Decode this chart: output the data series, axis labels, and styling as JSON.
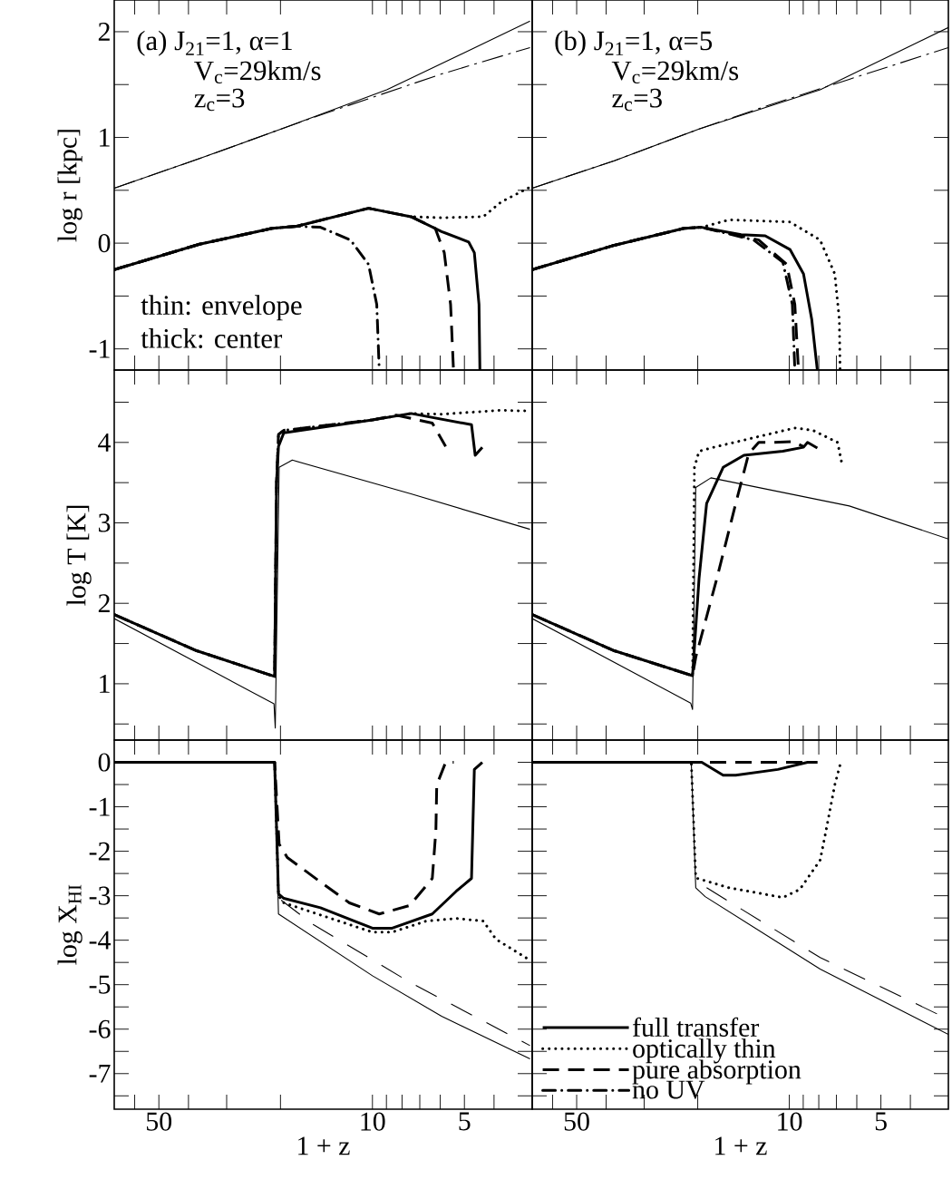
{
  "chart_data": [
    {
      "type": "line",
      "ylabel": "log r [kpc]",
      "xlim": [
        70,
        3
      ],
      "ylim": [
        -1.2,
        2.3
      ],
      "log": "x",
      "tick_labels": "y",
      "xticks": [
        {
          "value": 60,
          "label": null
        },
        50,
        {
          "value": 40,
          "label": null
        },
        {
          "value": 30,
          "label": null
        },
        {
          "value": 20,
          "label": null
        },
        10,
        {
          "value": 9,
          "label": null
        },
        {
          "value": 8,
          "label": null
        },
        {
          "value": 7,
          "label": null
        },
        {
          "value": 6,
          "label": null
        },
        5,
        {
          "value": 4,
          "label": null
        }
      ],
      "yticks": [
        -1,
        {
          "value": -0.5,
          "label": null
        },
        0,
        {
          "value": 0.5,
          "label": null
        },
        1,
        {
          "value": 1.5,
          "label": null
        },
        2
      ],
      "annotations": [
        "(a) J$_{21}$=1, α=1",
        "V$_{c}$=29km/s",
        "z$_{c}$=3",
        "thin: envelope",
        "thick: center"
      ],
      "series": [
        {
          "line_style": "solid",
          "color": "#000000",
          "x": [
            70,
            36.8,
            19.9,
            8.98,
            3.05
          ],
          "values": [
            0.52,
            0.8,
            1.08,
            1.45,
            2.1
          ]
        },
        {
          "line_style": "dashdot",
          "color": "#000000",
          "x": [
            70,
            36.8,
            19.9,
            14.2,
            5.94,
            3.05
          ],
          "values": [
            0.52,
            0.8,
            1.08,
            1.23,
            1.6,
            1.85
          ]
        },
        {
          "line_style": "solid",
          "color": "#000000",
          "x": [
            70,
            36.8,
            21.3,
            17.7,
            10.3,
            7.48,
            5.94,
            4.84,
            4.64,
            4.48,
            4.45
          ],
          "values": [
            -0.25,
            -0.01,
            0.14,
            0.16,
            0.33,
            0.25,
            0.11,
            0.01,
            -0.09,
            -0.58,
            -1.2
          ]
        },
        {
          "line_style": "dotted",
          "color": "#000000",
          "x": [
            70,
            36.8,
            21.3,
            17.7,
            10.3,
            7.48,
            5.94,
            4.34,
            3.79,
            3.05
          ],
          "values": [
            -0.25,
            -0.01,
            0.14,
            0.16,
            0.33,
            0.25,
            0.24,
            0.25,
            0.39,
            0.53
          ]
        },
        {
          "line_style": "dashed",
          "color": "#000000",
          "x": [
            70,
            36.8,
            21.3,
            17.7,
            10.3,
            7.48,
            6.23,
            5.82,
            5.55,
            5.43
          ],
          "values": [
            -0.25,
            -0.01,
            0.14,
            0.16,
            0.33,
            0.25,
            0.14,
            -0.09,
            -0.58,
            -1.2
          ]
        },
        {
          "line_style": "dashdot",
          "color": "#000000",
          "x": [
            70,
            36.8,
            21.3,
            17.7,
            14.8,
            11.8,
            10.3,
            9.68,
            9.5
          ],
          "values": [
            -0.25,
            -0.01,
            0.14,
            0.16,
            0.15,
            0.03,
            -0.2,
            -0.58,
            -1.2
          ]
        }
      ]
    },
    {
      "type": "line",
      "xlim": [
        70,
        3
      ],
      "ylim": [
        -1.2,
        2.3
      ],
      "log": "x",
      "tick_labels": false,
      "xticks": [
        {
          "value": 60,
          "label": null
        },
        50,
        {
          "value": 40,
          "label": null
        },
        {
          "value": 30,
          "label": null
        },
        {
          "value": 20,
          "label": null
        },
        10,
        {
          "value": 9,
          "label": null
        },
        {
          "value": 8,
          "label": null
        },
        {
          "value": 7,
          "label": null
        },
        {
          "value": 6,
          "label": null
        },
        5,
        {
          "value": 4,
          "label": null
        }
      ],
      "yticks": [
        -1,
        {
          "value": -0.5,
          "label": null
        },
        0,
        {
          "value": 0.5,
          "label": null
        },
        1,
        {
          "value": 1.5,
          "label": null
        },
        2
      ],
      "annotations": [
        "(b) J$_{21}$=1, α=5",
        "V$_{c}$=29km/s",
        "z$_{c}$=3"
      ],
      "series": [
        {
          "line_style": "solid",
          "color": "#000000",
          "x": [
            70,
            37.6,
            19.8,
            7.92,
            3.0
          ],
          "values": [
            0.52,
            0.78,
            1.08,
            1.45,
            2.04
          ]
        },
        {
          "line_style": "dashdot",
          "color": "#000000",
          "x": [
            70,
            37.6,
            19.8,
            11.8,
            6.35,
            3.0
          ],
          "values": [
            0.52,
            0.78,
            1.08,
            1.3,
            1.55,
            1.85
          ]
        },
        {
          "line_style": "solid",
          "color": "#000000",
          "x": [
            70,
            37.6,
            22.2,
            19.4,
            14.4,
            12.0,
            9.95,
            8.98,
            8.44,
            8.09
          ],
          "values": [
            -0.25,
            -0.02,
            0.14,
            0.15,
            0.08,
            0.07,
            -0.06,
            -0.29,
            -0.72,
            -1.2
          ]
        },
        {
          "line_style": "dotted",
          "color": "#000000",
          "x": [
            70,
            37.6,
            22.2,
            19.4,
            15.8,
            9.95,
            7.92,
            7.09,
            6.85,
            6.81
          ],
          "values": [
            -0.25,
            -0.02,
            0.14,
            0.15,
            0.22,
            0.2,
            0.03,
            -0.29,
            -0.72,
            -1.2
          ]
        },
        {
          "line_style": "dashed",
          "color": "#000000",
          "x": [
            70,
            37.6,
            22.2,
            19.4,
            12.6,
            10.2,
            9.59,
            9.33
          ],
          "values": [
            -0.25,
            -0.02,
            0.14,
            0.15,
            0.03,
            -0.2,
            -0.58,
            -1.2
          ]
        },
        {
          "name": "no UV",
          "line_style": "dashdot",
          "color": "#000000",
          "x": [
            70,
            37.6,
            22.2,
            19.4,
            13.1,
            10.5,
            9.77,
            9.59
          ],
          "values": [
            -0.25,
            -0.02,
            0.14,
            0.15,
            0.03,
            -0.18,
            -0.58,
            -1.2
          ]
        }
      ]
    },
    {
      "type": "line",
      "ylabel": "log T [K]",
      "xlim": [
        70,
        3
      ],
      "ylim": [
        0.3,
        4.9
      ],
      "log": "x",
      "tick_labels": "y",
      "xticks": [
        {
          "value": 60,
          "label": null
        },
        50,
        {
          "value": 40,
          "label": null
        },
        {
          "value": 30,
          "label": null
        },
        {
          "value": 20,
          "label": null
        },
        10,
        {
          "value": 9,
          "label": null
        },
        {
          "value": 8,
          "label": null
        },
        {
          "value": 7,
          "label": null
        },
        {
          "value": 6,
          "label": null
        },
        5,
        {
          "value": 4,
          "label": null
        }
      ],
      "yticks": [
        {
          "value": 0.5,
          "label": null
        },
        1,
        {
          "value": 1.5,
          "label": null
        },
        2,
        {
          "value": 2.5,
          "label": null
        },
        3,
        {
          "value": 3.5,
          "label": null
        },
        4,
        {
          "value": 4.5,
          "label": null
        }
      ],
      "series": [
        {
          "line_style": "solid",
          "color": "#000000",
          "x": [
            70,
            21.0,
            20.8,
            20.2,
            18.3,
            7.48,
            3.05
          ],
          "values": [
            1.81,
            0.75,
            0.45,
            3.69,
            3.78,
            3.36,
            2.92
          ]
        },
        {
          "line_style": "solid",
          "color": "#000000",
          "x": [
            70,
            37.6,
            20.9,
            20.6,
            20.3,
            19.5,
            10.0,
            7.48,
            4.74,
            4.61,
            4.37
          ],
          "values": [
            1.86,
            1.41,
            1.09,
            3.5,
            3.95,
            4.12,
            4.28,
            4.36,
            4.22,
            3.84,
            3.94
          ]
        },
        {
          "line_style": "dotted",
          "color": "#000000",
          "x": [
            70,
            37.6,
            20.9,
            20.6,
            20.3,
            19.5,
            10.0,
            7.48,
            5.94,
            3.82,
            3.05
          ],
          "values": [
            1.86,
            1.41,
            1.09,
            3.5,
            4.1,
            4.15,
            4.28,
            4.36,
            4.35,
            4.4,
            4.39
          ]
        },
        {
          "line_style": "dashed",
          "color": "#000000",
          "x": [
            70,
            37.6,
            20.9,
            20.6,
            20.3,
            19.5,
            10.0,
            8.36,
            6.37,
            5.76
          ],
          "values": [
            1.86,
            1.41,
            1.09,
            3.5,
            4.1,
            4.15,
            4.28,
            4.34,
            4.24,
            3.95
          ]
        }
      ]
    },
    {
      "type": "line",
      "xlim": [
        70,
        3
      ],
      "ylim": [
        0.3,
        4.9
      ],
      "log": "x",
      "tick_labels": false,
      "xticks": [
        {
          "value": 60,
          "label": null
        },
        50,
        {
          "value": 40,
          "label": null
        },
        {
          "value": 30,
          "label": null
        },
        {
          "value": 20,
          "label": null
        },
        10,
        {
          "value": 9,
          "label": null
        },
        {
          "value": 8,
          "label": null
        },
        {
          "value": 7,
          "label": null
        },
        {
          "value": 6,
          "label": null
        },
        5,
        {
          "value": 4,
          "label": null
        }
      ],
      "yticks": [
        {
          "value": 0.5,
          "label": null
        },
        1,
        {
          "value": 1.5,
          "label": null
        },
        2,
        {
          "value": 2.5,
          "label": null
        },
        3,
        {
          "value": 3.5,
          "label": null
        },
        4,
        {
          "value": 4.5,
          "label": null
        }
      ],
      "series": [
        {
          "line_style": "solid",
          "color": "#000000",
          "x": [
            70,
            21.1,
            20.8,
            20.3,
            18.1,
            6.35,
            3.0
          ],
          "values": [
            1.81,
            0.76,
            0.68,
            3.44,
            3.56,
            3.21,
            2.8
          ]
        },
        {
          "line_style": "solid",
          "color": "#000000",
          "x": [
            70,
            37.6,
            20.8,
            19.8,
            18.7,
            16.5,
            14.1,
            10.5,
            8.98,
            8.71,
            8.09
          ],
          "values": [
            1.86,
            1.41,
            1.1,
            2.31,
            3.24,
            3.69,
            3.84,
            3.89,
            3.94,
            4.0,
            3.93
          ]
        },
        {
          "line_style": "dotted",
          "color": "#000000",
          "x": [
            70,
            37.6,
            20.8,
            20.5,
            19.8,
            17.7,
            9.59,
            8.36,
            6.94,
            6.71
          ],
          "values": [
            1.86,
            1.41,
            1.1,
            3.69,
            3.89,
            3.94,
            4.18,
            4.15,
            4.0,
            3.73
          ]
        },
        {
          "line_style": "dashed",
          "color": "#000000",
          "x": [
            70,
            37.6,
            20.8,
            20.3,
            17.3,
            15.0,
            13.6,
            12.6,
            11.2,
            9.77,
            8.98
          ],
          "values": [
            1.86,
            1.41,
            1.1,
            1.33,
            2.31,
            3.24,
            3.86,
            4.0,
            4.0,
            4.01,
            3.95
          ]
        }
      ]
    },
    {
      "type": "line",
      "ylabel": "log X$_{HI}$",
      "xlabel": "1 + z",
      "xlim": [
        70,
        3
      ],
      "ylim": [
        -7.8,
        0.5
      ],
      "log": "x",
      "xticks": [
        {
          "value": 60,
          "label": null
        },
        50,
        {
          "value": 40,
          "label": null
        },
        {
          "value": 30,
          "label": null
        },
        {
          "value": 20,
          "label": null
        },
        10,
        {
          "value": 9,
          "label": null
        },
        {
          "value": 8,
          "label": null
        },
        {
          "value": 7,
          "label": null
        },
        {
          "value": 6,
          "label": null
        },
        5,
        {
          "value": 4,
          "label": null
        }
      ],
      "yticks": [
        {
          "value": -7.5,
          "label": null
        },
        -7,
        {
          "value": -6.5,
          "label": null
        },
        -6,
        {
          "value": -5.5,
          "label": null
        },
        -5,
        {
          "value": -4.5,
          "label": null
        },
        -4,
        {
          "value": -3.5,
          "label": null
        },
        -3,
        {
          "value": -2.5,
          "label": null
        },
        -2,
        {
          "value": -1.5,
          "label": null
        },
        -1,
        {
          "value": -0.5,
          "label": null
        },
        0
      ],
      "series": [
        {
          "line_style": "solid",
          "color": "#000000",
          "x": [
            70,
            20.9,
            20.3,
            10.0,
            5.94,
            3.05
          ],
          "values": [
            0,
            0,
            -3.41,
            -4.8,
            -5.71,
            -6.67
          ]
        },
        {
          "line_style": "dashed",
          "color": "#000000",
          "x": [
            19.9,
            15.6,
            7.48,
            3.05
          ],
          "values": [
            -3.1,
            -3.65,
            -4.96,
            -6.37
          ]
        },
        {
          "line_style": "solid",
          "color": "#000000",
          "x": [
            70,
            20.9,
            20.3,
            19.5,
            14.8,
            10.0,
            8.62,
            6.37,
            5.32,
            4.74,
            4.64,
            4.37
          ],
          "values": [
            0,
            0,
            -2.96,
            -3.06,
            -3.27,
            -3.73,
            -3.73,
            -3.41,
            -2.9,
            -2.61,
            -0.16,
            0
          ]
        },
        {
          "line_style": "dotted",
          "color": "#000000",
          "x": [
            70,
            20.9,
            20.3,
            19.5,
            10.0,
            8.62,
            6.67,
            5.32,
            4.34,
            3.94,
            3.05
          ],
          "values": [
            0,
            0,
            -3.0,
            -3.16,
            -3.82,
            -3.82,
            -3.57,
            -3.51,
            -3.57,
            -3.98,
            -4.45
          ]
        },
        {
          "line_style": "dashed",
          "color": "#000000",
          "x": [
            70,
            20.9,
            20.2,
            19.0,
            14.8,
            11.9,
            9.5,
            7.55,
            6.37,
            6.2,
            6.16,
            5.76,
            5.42
          ],
          "values": [
            0,
            0,
            -1.84,
            -2.14,
            -2.69,
            -3.16,
            -3.41,
            -3.22,
            -2.61,
            -1.53,
            -0.51,
            0,
            0
          ]
        }
      ]
    },
    {
      "type": "line",
      "xlabel": "1 + z",
      "xlim": [
        70,
        3
      ],
      "ylim": [
        -7.8,
        0.5
      ],
      "log": "x",
      "tick_labels": "x",
      "legend": "bottom left",
      "xticks": [
        {
          "value": 60,
          "label": null
        },
        50,
        {
          "value": 40,
          "label": null
        },
        {
          "value": 30,
          "label": null
        },
        {
          "value": 20,
          "label": null
        },
        10,
        {
          "value": 9,
          "label": null
        },
        {
          "value": 8,
          "label": null
        },
        {
          "value": 7,
          "label": null
        },
        {
          "value": 6,
          "label": null
        },
        5,
        {
          "value": 4,
          "label": null
        }
      ],
      "yticks": [
        {
          "value": -7.5,
          "label": null
        },
        -7,
        {
          "value": -6.5,
          "label": null
        },
        -6,
        {
          "value": -5.5,
          "label": null
        },
        -5,
        {
          "value": -4.5,
          "label": null
        },
        -4,
        {
          "value": -3.5,
          "label": null
        },
        -3,
        {
          "value": -2.5,
          "label": null
        },
        -2,
        {
          "value": -1.5,
          "label": null
        },
        -1,
        {
          "value": -0.5,
          "label": null
        },
        0
      ],
      "series": [
        {
          "line_style": "solid",
          "color": "#000000",
          "x": [
            70,
            21.0,
            20.3,
            18.9,
            7.92,
            3.0
          ],
          "values": [
            0,
            0,
            -2.82,
            -3.02,
            -4.65,
            -6.12
          ]
        },
        {
          "line_style": "dashed",
          "color": "#000000",
          "x": [
            18.7,
            7.92,
            3.0
          ],
          "values": [
            -2.82,
            -4.39,
            -5.78
          ]
        },
        {
          "name": "full transfer",
          "line_style": "solid",
          "color": "#000000",
          "x": [
            70,
            19.4,
            16.5,
            15.0,
            10.9,
            8.71,
            8.09
          ],
          "values": [
            0,
            0,
            -0.29,
            -0.29,
            -0.16,
            0,
            0
          ]
        },
        {
          "name": "optically thin",
          "line_style": "dotted",
          "color": "#000000",
          "x": [
            70,
            21.0,
            20.3,
            15.8,
            10.5,
            9.24,
            7.92,
            7.57,
            7.09,
            6.81
          ],
          "values": [
            0,
            0,
            -2.6,
            -2.82,
            -3.04,
            -2.86,
            -2.2,
            -1.53,
            -0.51,
            -0.06
          ]
        },
        {
          "name": "pure absorption",
          "line_style": "dashed",
          "color": "#000000",
          "x": [
            70,
            8.09
          ],
          "values": [
            0,
            0
          ]
        }
      ]
    }
  ]
}
